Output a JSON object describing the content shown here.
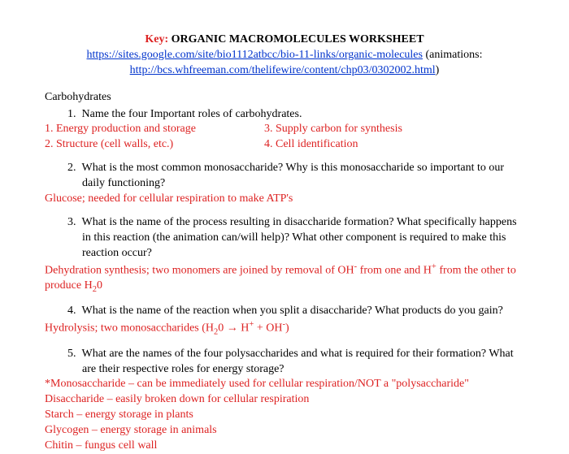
{
  "header": {
    "key_label": "Key:",
    "title": "ORGANIC  MACROMOLECULES  WORKSHEET",
    "link1": "https://sites.google.com/site/bio1112atbcc/bio-11-links/organic-molecules",
    "link1_after": " (animations: ",
    "link2": "http://bcs.whfreeman.com/thelifewire/content/chp03/0302002.html",
    "link2_after": ")"
  },
  "section1": "Carbohydrates",
  "q1": {
    "num": "1.",
    "text": "Name the four Important roles of carbohydrates.",
    "a1": "1. Energy production and storage",
    "a2": "2. Structure (cell walls, etc.)",
    "a3": "3. Supply carbon for synthesis",
    "a4": "4. Cell identification"
  },
  "q2": {
    "num": "2.",
    "text": "What is the most common monosaccharide? Why is this monosaccharide so important to our daily functioning?",
    "ans": "Glucose; needed for cellular respiration to make ATP's"
  },
  "q3": {
    "num": "3.",
    "text": "What is the name of the process resulting in disaccharide formation? What specifically happens in this reaction (the animation can/will help)? What other component is required to make this reaction occur?",
    "ans_pre": "Dehydration synthesis; two monomers are joined by removal of OH",
    "ans_mid1": " from one and H",
    "ans_mid2": " from the other to produce H",
    "ans_sub": "2",
    "ans_end": "0"
  },
  "q4": {
    "num": "4.",
    "text": "What is the name of the reaction when you split a disaccharide? What products do you gain?",
    "ans_pre": "Hydrolysis; two monosaccharides (H",
    "ans_sub": "2",
    "ans_mid": "0 → H",
    "ans_sup1": "+",
    "ans_mid2": " + OH",
    "ans_sup2": "-",
    "ans_end": ")"
  },
  "q5": {
    "num": "5.",
    "text": "What are the names of the four polysaccharides and what is required for their formation? What are their respective roles for energy storage?",
    "a1": "*Monosaccharide – can be immediately used for cellular respiration/NOT a \"polysaccharide\"",
    "a2": "Disaccharide – easily broken down for cellular respiration",
    "a3": "Starch – energy storage in plants",
    "a4": "Glycogen – energy storage in animals",
    "a5": "Chitin – fungus cell wall"
  }
}
